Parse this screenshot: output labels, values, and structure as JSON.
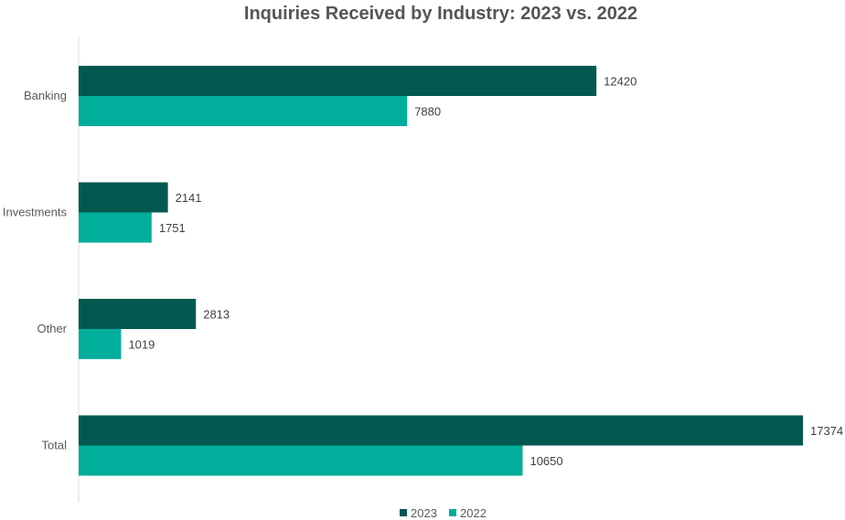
{
  "chart_data": {
    "type": "bar",
    "orientation": "horizontal",
    "title": "Inquiries Received by Industry: 2023 vs. 2022",
    "categories": [
      "Banking",
      "Investments",
      "Other",
      "Total"
    ],
    "series": [
      {
        "name": "2023",
        "color": "#02594f",
        "values": [
          12420,
          2141,
          2813,
          17374
        ]
      },
      {
        "name": "2022",
        "color": "#00ae9b",
        "values": [
          7880,
          1751,
          1019,
          10650
        ]
      }
    ],
    "xlim": [
      0,
      18000
    ],
    "xlabel": "",
    "ylabel": "",
    "grid": false,
    "data_labels": true,
    "legend_position": "bottom"
  }
}
